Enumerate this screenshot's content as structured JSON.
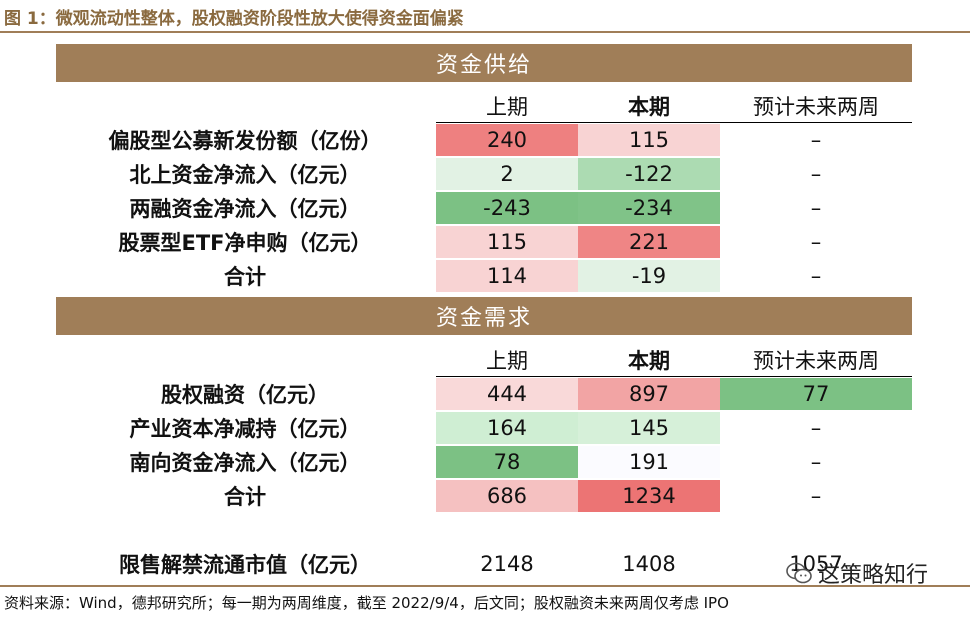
{
  "title": "图 1：微观流动性整体，股权融资阶段性放大使得资金面偏紧",
  "supply": {
    "header": "资金供给",
    "cols": [
      "上期",
      "本期",
      "预计未来两周"
    ],
    "rows": [
      {
        "label": "偏股型公募新发份额（亿份）",
        "prev": "240",
        "curr": "115",
        "next": "–",
        "prev_bg": "#ee8080",
        "curr_bg": "#f8d3d3",
        "next_bg": "#ffffff"
      },
      {
        "label": "北上资金净流入（亿元）",
        "prev": "2",
        "curr": "-122",
        "next": "–",
        "prev_bg": "#e2f2e4",
        "curr_bg": "#acdbb2",
        "next_bg": "#ffffff"
      },
      {
        "label": "两融资金净流入（亿元）",
        "prev": "-243",
        "curr": "-234",
        "next": "–",
        "prev_bg": "#7cc184",
        "curr_bg": "#80c388",
        "next_bg": "#ffffff"
      },
      {
        "label": "股票型ETF净申购（亿元）",
        "prev": "115",
        "curr": "221",
        "next": "–",
        "prev_bg": "#f8d3d3",
        "curr_bg": "#ef8585",
        "next_bg": "#ffffff"
      },
      {
        "label": "合计",
        "prev": "114",
        "curr": "-19",
        "next": "–",
        "prev_bg": "#f8d3d3",
        "curr_bg": "#e2f2e4",
        "next_bg": "#ffffff"
      }
    ]
  },
  "demand": {
    "header": "资金需求",
    "cols": [
      "上期",
      "本期",
      "预计未来两周"
    ],
    "rows": [
      {
        "label": "股权融资（亿元）",
        "prev": "444",
        "curr": "897",
        "next": "77",
        "prev_bg": "#f9d9d9",
        "curr_bg": "#f2a4a4",
        "next_bg": "#7cc184"
      },
      {
        "label": "产业资本净减持（亿元）",
        "prev": "164",
        "curr": "145",
        "next": "–",
        "prev_bg": "#cfeed3",
        "curr_bg": "#d6f0d9",
        "next_bg": "#ffffff"
      },
      {
        "label": "南向资金净流入（亿元）",
        "prev": "78",
        "curr": "191",
        "next": "–",
        "prev_bg": "#7cc184",
        "curr_bg": "#fbfbff",
        "next_bg": "#ffffff"
      },
      {
        "label": "合计",
        "prev": "686",
        "curr": "1234",
        "next": "–",
        "prev_bg": "#f5c1c1",
        "curr_bg": "#ec7474",
        "next_bg": "#ffffff"
      }
    ]
  },
  "unlock": {
    "label": "限售解禁流通市值（亿元）",
    "prev": "2148",
    "curr": "1408",
    "next": "1057"
  },
  "watermark": "这策略知行",
  "source": "资料来源：Wind，德邦研究所；每一期为两周维度，截至 2022/9/4，后文同；股权融资未来两周仅考虑 IPO",
  "colors": {
    "band": "#a07e58",
    "title": "#8a6a3f"
  }
}
